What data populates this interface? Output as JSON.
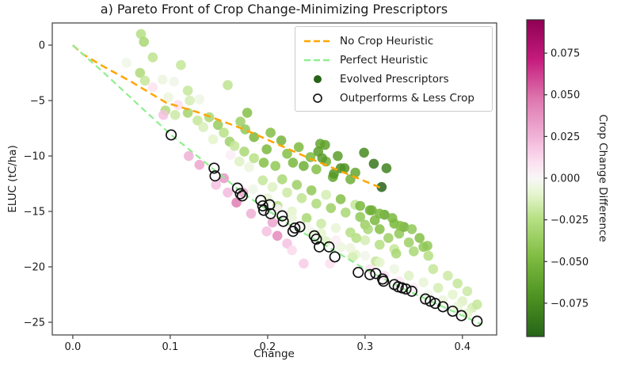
{
  "chart_data": {
    "type": "scatter",
    "title": "a) Pareto Front of Crop Change-Minimizing Prescriptors",
    "xlabel": "Change",
    "ylabel": "ELUC (tC/ha)",
    "xlim": [
      -0.0211,
      0.4351
    ],
    "ylim": [
      -26.14,
      2.0
    ],
    "grid": false,
    "xticks": {
      "values": [
        0.0,
        0.1,
        0.2,
        0.3,
        0.4
      ],
      "labels": [
        "0.0",
        "0.1",
        "0.2",
        "0.3",
        "0.4"
      ]
    },
    "yticks": {
      "values": [
        0,
        -5,
        -10,
        -15,
        -20,
        -25
      ],
      "labels": [
        "0",
        "−5",
        "−10",
        "−15",
        "−20",
        "−25"
      ]
    },
    "legend": {
      "position": "upper right",
      "entries": [
        {
          "label": "No Crop Heuristic",
          "type": "dashed-line",
          "color": "#ffa500"
        },
        {
          "label": "Perfect Heuristic",
          "type": "dashed-line",
          "color": "#90ee90"
        },
        {
          "label": "Evolved Prescriptors",
          "type": "dot",
          "color": "#276419"
        },
        {
          "label": "Outperforms & Less Crop",
          "type": "open-circle",
          "color": "#1a1a1a"
        }
      ]
    },
    "lines": [
      {
        "name": "No Crop Heuristic",
        "color": "#ffa500",
        "dashed": true,
        "points": [
          [
            0,
            0
          ],
          [
            0.01,
            -0.8
          ],
          [
            0.031,
            -1.9
          ],
          [
            0.06,
            -3.3
          ],
          [
            0.096,
            -5.2
          ],
          [
            0.13,
            -6.1
          ],
          [
            0.176,
            -7.6
          ],
          [
            0.24,
            -10.1
          ],
          [
            0.317,
            -12.9
          ]
        ]
      },
      {
        "name": "Perfect Heuristic",
        "color": "#90ee90",
        "dashed": true,
        "points": [
          [
            0,
            0
          ],
          [
            0.037,
            -2.9
          ],
          [
            0.07,
            -5.6
          ],
          [
            0.101,
            -8.1
          ],
          [
            0.146,
            -11.3
          ],
          [
            0.174,
            -13.3
          ],
          [
            0.2,
            -14.9
          ],
          [
            0.23,
            -16.6
          ],
          [
            0.26,
            -18.1
          ],
          [
            0.3,
            -20.2
          ],
          [
            0.34,
            -22.0
          ],
          [
            0.38,
            -23.6
          ],
          [
            0.42,
            -25.2
          ]
        ]
      }
    ],
    "scatter": {
      "name": "Evolved Prescriptors",
      "value_key": "Crop Change Difference",
      "points": [
        [
          0.07,
          1.0,
          -0.025
        ],
        [
          0.073,
          0.3,
          -0.03
        ],
        [
          0.082,
          -1.1,
          -0.022
        ],
        [
          0.055,
          -1.6,
          -0.004
        ],
        [
          0.111,
          -1.8,
          -0.02
        ],
        [
          0.069,
          -2.5,
          -0.028
        ],
        [
          0.092,
          -3.1,
          -0.006
        ],
        [
          0.074,
          -3.2,
          -0.02
        ],
        [
          0.082,
          -3.8,
          0.008
        ],
        [
          0.104,
          -3.3,
          -0.004
        ],
        [
          0.159,
          -3.6,
          -0.022
        ],
        [
          0.118,
          -4.1,
          -0.02
        ],
        [
          0.13,
          -4.9,
          -0.005
        ],
        [
          0.12,
          -5.0,
          -0.015
        ],
        [
          0.098,
          -4.7,
          -0.006
        ],
        [
          0.108,
          -5.4,
          0.01
        ],
        [
          0.095,
          -5.9,
          -0.028
        ],
        [
          0.105,
          -6.3,
          -0.018
        ],
        [
          0.118,
          -6.1,
          -0.032
        ],
        [
          0.128,
          -6.8,
          -0.02
        ],
        [
          0.14,
          -6.5,
          -0.03
        ],
        [
          0.134,
          -7.4,
          -0.014
        ],
        [
          0.149,
          -7.2,
          -0.038
        ],
        [
          0.155,
          -7.9,
          -0.024
        ],
        [
          0.144,
          -8.5,
          -0.01
        ],
        [
          0.161,
          -8.7,
          -0.034
        ],
        [
          0.166,
          -9.1,
          -0.02
        ],
        [
          0.176,
          -9.6,
          -0.03
        ],
        [
          0.186,
          -10.2,
          -0.024
        ],
        [
          0.162,
          -9.9,
          0.004
        ],
        [
          0.171,
          -10.5,
          -0.012
        ],
        [
          0.181,
          -11.0,
          -0.006
        ],
        [
          0.093,
          -6.3,
          0.02
        ],
        [
          0.119,
          -10.0,
          0.026
        ],
        [
          0.147,
          -12.6,
          0.02
        ],
        [
          0.175,
          -13.3,
          0.03
        ],
        [
          0.159,
          -13.3,
          0.022
        ],
        [
          0.183,
          -15.2,
          0.026
        ],
        [
          0.199,
          -16.8,
          0.02
        ],
        [
          0.22,
          -17.9,
          0.02
        ],
        [
          0.237,
          -19.7,
          0.016
        ],
        [
          0.264,
          -19.7,
          0.01
        ],
        [
          0.13,
          -10.8,
          0.03
        ],
        [
          0.155,
          -12.0,
          0.035
        ],
        [
          0.205,
          -16.0,
          0.03
        ],
        [
          0.225,
          -18.5,
          0.012
        ],
        [
          0.168,
          -14.2,
          0.045
        ],
        [
          0.21,
          -17.2,
          0.04
        ],
        [
          0.179,
          -6.1,
          -0.045
        ],
        [
          0.172,
          -6.9,
          -0.035
        ],
        [
          0.177,
          -7.6,
          -0.04
        ],
        [
          0.203,
          -7.9,
          -0.046
        ],
        [
          0.186,
          -8.3,
          -0.05
        ],
        [
          0.199,
          -9.4,
          -0.05
        ],
        [
          0.214,
          -8.6,
          -0.052
        ],
        [
          0.226,
          -10.6,
          -0.05
        ],
        [
          0.237,
          -10.9,
          -0.055
        ],
        [
          0.254,
          -8.9,
          -0.06
        ],
        [
          0.259,
          -9.0,
          -0.062
        ],
        [
          0.267,
          -11.9,
          -0.06
        ],
        [
          0.285,
          -12.1,
          -0.055
        ],
        [
          0.22,
          -9.8,
          -0.045
        ],
        [
          0.232,
          -9.2,
          -0.048
        ],
        [
          0.244,
          -10.1,
          -0.05
        ],
        [
          0.25,
          -11.2,
          -0.045
        ],
        [
          0.26,
          -10.5,
          -0.055
        ],
        [
          0.272,
          -10.0,
          -0.065
        ],
        [
          0.29,
          -11.5,
          -0.06
        ],
        [
          0.208,
          -10.9,
          -0.04
        ],
        [
          0.196,
          -10.6,
          -0.045
        ],
        [
          0.299,
          -9.7,
          -0.075
        ],
        [
          0.309,
          -10.7,
          -0.085
        ],
        [
          0.322,
          -11.1,
          -0.08
        ],
        [
          0.275,
          -11.1,
          -0.072
        ],
        [
          0.268,
          -11.6,
          -0.068
        ],
        [
          0.279,
          -11.1,
          -0.07
        ],
        [
          0.317,
          -12.8,
          -0.095
        ],
        [
          0.252,
          -9.6,
          -0.065
        ],
        [
          0.256,
          -10.2,
          -0.066
        ],
        [
          0.195,
          -12.2,
          -0.02
        ],
        [
          0.205,
          -12.8,
          -0.012
        ],
        [
          0.215,
          -12.1,
          -0.03
        ],
        [
          0.22,
          -13.3,
          -0.018
        ],
        [
          0.23,
          -12.6,
          -0.035
        ],
        [
          0.235,
          -13.8,
          -0.022
        ],
        [
          0.245,
          -13.1,
          -0.04
        ],
        [
          0.25,
          -14.3,
          -0.028
        ],
        [
          0.26,
          -13.5,
          -0.015
        ],
        [
          0.265,
          -14.7,
          -0.035
        ],
        [
          0.275,
          -13.9,
          -0.045
        ],
        [
          0.28,
          -15.1,
          -0.03
        ],
        [
          0.29,
          -14.4,
          -0.02
        ],
        [
          0.295,
          -15.5,
          -0.04
        ],
        [
          0.2,
          -13.9,
          -0.008
        ],
        [
          0.21,
          -14.5,
          -0.025
        ],
        [
          0.225,
          -15.0,
          -0.01
        ],
        [
          0.24,
          -15.6,
          -0.03
        ],
        [
          0.255,
          -16.1,
          -0.018
        ],
        [
          0.27,
          -16.5,
          -0.008
        ],
        [
          0.285,
          -16.9,
          -0.025
        ],
        [
          0.3,
          -16.2,
          -0.035
        ],
        [
          0.31,
          -15.8,
          -0.05
        ],
        [
          0.305,
          -14.9,
          -0.055
        ],
        [
          0.315,
          -16.6,
          -0.045
        ],
        [
          0.32,
          -15.3,
          -0.06
        ],
        [
          0.33,
          -16.1,
          -0.05
        ],
        [
          0.335,
          -17.0,
          -0.04
        ],
        [
          0.34,
          -16.4,
          -0.055
        ],
        [
          0.3,
          -17.6,
          -0.015
        ],
        [
          0.315,
          -18.0,
          -0.025
        ],
        [
          0.33,
          -18.4,
          -0.02
        ],
        [
          0.345,
          -17.8,
          -0.035
        ],
        [
          0.35,
          -18.6,
          -0.03
        ],
        [
          0.36,
          -18.2,
          -0.04
        ],
        [
          0.365,
          -19.0,
          -0.025
        ],
        [
          0.29,
          -18.9,
          -0.01
        ],
        [
          0.275,
          -18.2,
          -0.006
        ],
        [
          0.26,
          -17.7,
          -0.012
        ],
        [
          0.245,
          -16.9,
          -0.006
        ],
        [
          0.295,
          -14.5,
          -0.05
        ],
        [
          0.307,
          -14.9,
          -0.055
        ],
        [
          0.315,
          -15.2,
          -0.05
        ],
        [
          0.328,
          -15.6,
          -0.05
        ],
        [
          0.336,
          -16.3,
          -0.045
        ],
        [
          0.348,
          -16.6,
          -0.04
        ],
        [
          0.356,
          -17.4,
          -0.045
        ],
        [
          0.364,
          -18.1,
          -0.04
        ],
        [
          0.303,
          -16.6,
          -0.03
        ],
        [
          0.291,
          -17.4,
          -0.025
        ],
        [
          0.324,
          -17.4,
          -0.035
        ],
        [
          0.332,
          -18.8,
          -0.03
        ],
        [
          0.311,
          -19.5,
          -0.02
        ],
        [
          0.287,
          -19.1,
          -0.015
        ],
        [
          0.185,
          -13.0,
          -0.004
        ],
        [
          0.2,
          -13.8,
          -0.006
        ],
        [
          0.21,
          -14.8,
          0.002
        ],
        [
          0.225,
          -15.6,
          -0.008
        ],
        [
          0.24,
          -16.4,
          -0.002
        ],
        [
          0.255,
          -17.0,
          -0.01
        ],
        [
          0.27,
          -17.6,
          0.004
        ],
        [
          0.285,
          -18.3,
          -0.006
        ],
        [
          0.3,
          -19.0,
          -0.003
        ],
        [
          0.315,
          -19.6,
          -0.01
        ],
        [
          0.33,
          -20.2,
          -0.005
        ],
        [
          0.345,
          -20.8,
          -0.012
        ],
        [
          0.36,
          -21.4,
          -0.008
        ],
        [
          0.375,
          -21.9,
          -0.015
        ],
        [
          0.39,
          -22.5,
          -0.01
        ],
        [
          0.4,
          -23.1,
          -0.012
        ],
        [
          0.41,
          -23.7,
          -0.015
        ],
        [
          0.35,
          -21.9,
          0.004
        ],
        [
          0.365,
          -22.5,
          -0.002
        ],
        [
          0.38,
          -23.0,
          -0.006
        ],
        [
          0.395,
          -23.6,
          -0.008
        ],
        [
          0.405,
          -24.2,
          -0.01
        ],
        [
          0.335,
          -21.3,
          0.006
        ],
        [
          0.32,
          -20.8,
          0.01
        ],
        [
          0.305,
          -20.2,
          0.008
        ],
        [
          0.37,
          -20.2,
          -0.02
        ],
        [
          0.385,
          -20.8,
          -0.018
        ],
        [
          0.395,
          -21.5,
          -0.02
        ],
        [
          0.405,
          -22.2,
          -0.018
        ],
        [
          0.415,
          -23.4,
          -0.02
        ]
      ]
    },
    "outperformers": {
      "name": "Outperforms & Less Crop",
      "points": [
        [
          0.101,
          -8.1
        ],
        [
          0.145,
          -11.1
        ],
        [
          0.146,
          -11.8
        ],
        [
          0.169,
          -12.9
        ],
        [
          0.172,
          -13.4
        ],
        [
          0.174,
          -13.6
        ],
        [
          0.193,
          -14.0
        ],
        [
          0.195,
          -14.5
        ],
        [
          0.196,
          -14.9
        ],
        [
          0.202,
          -14.4
        ],
        [
          0.203,
          -15.2
        ],
        [
          0.215,
          -15.4
        ],
        [
          0.216,
          -15.9
        ],
        [
          0.228,
          -16.5
        ],
        [
          0.233,
          -16.4
        ],
        [
          0.226,
          -16.8
        ],
        [
          0.248,
          -17.2
        ],
        [
          0.25,
          -17.5
        ],
        [
          0.253,
          -18.2
        ],
        [
          0.263,
          -18.2
        ],
        [
          0.269,
          -19.1
        ],
        [
          0.293,
          -20.5
        ],
        [
          0.305,
          -20.7
        ],
        [
          0.311,
          -20.6
        ],
        [
          0.318,
          -21.1
        ],
        [
          0.319,
          -21.3
        ],
        [
          0.33,
          -21.6
        ],
        [
          0.334,
          -21.8
        ],
        [
          0.338,
          -21.9
        ],
        [
          0.342,
          -22.0
        ],
        [
          0.348,
          -22.2
        ],
        [
          0.362,
          -22.9
        ],
        [
          0.367,
          -23.1
        ],
        [
          0.372,
          -23.3
        ],
        [
          0.38,
          -23.6
        ],
        [
          0.39,
          -24.0
        ],
        [
          0.399,
          -24.4
        ],
        [
          0.415,
          -24.9
        ]
      ]
    },
    "colorbar": {
      "label": "Crop Change Difference",
      "vmin": -0.095,
      "vmax": 0.095,
      "ticks": {
        "values": [
          0.075,
          0.05,
          0.025,
          0.0,
          -0.025,
          -0.05,
          -0.075
        ],
        "labels": [
          "0.075",
          "0.050",
          "0.025",
          "0.000",
          "−0.025",
          "−0.050",
          "−0.075"
        ]
      },
      "colormap": "PiYG reversed (pink positive, green negative)",
      "gradient_stops": [
        {
          "t": -1.0,
          "color": "#276419"
        },
        {
          "t": -0.75,
          "color": "#4d9221"
        },
        {
          "t": -0.5,
          "color": "#7fbc41"
        },
        {
          "t": -0.25,
          "color": "#b8e186"
        },
        {
          "t": -0.1,
          "color": "#e6f5d0"
        },
        {
          "t": 0.0,
          "color": "#f7f7f7"
        },
        {
          "t": 0.1,
          "color": "#fde0ef"
        },
        {
          "t": 0.25,
          "color": "#f1b6da"
        },
        {
          "t": 0.5,
          "color": "#de77ae"
        },
        {
          "t": 0.75,
          "color": "#c51b7d"
        },
        {
          "t": 1.0,
          "color": "#8e0152"
        }
      ]
    },
    "colors": {
      "axis": "#4a4a4a",
      "text": "#1a1a1a",
      "background": "#ffffff"
    }
  }
}
